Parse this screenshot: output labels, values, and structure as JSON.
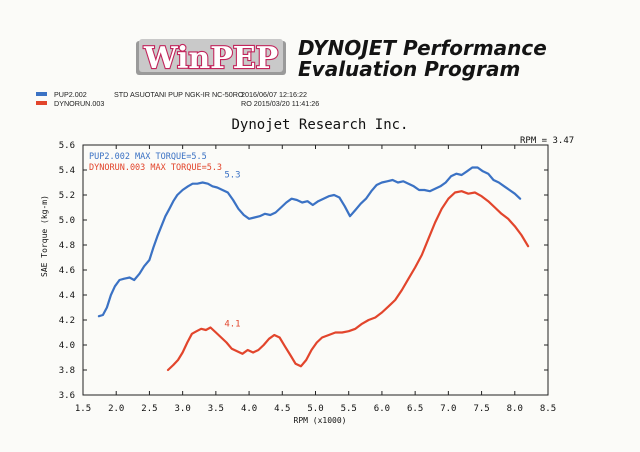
{
  "header": {
    "logo_text": "WinPEP",
    "title_line1": "DYNOJET Performance",
    "title_line2": "Evaluation Program"
  },
  "legend": [
    {
      "name": "PUP2.002",
      "description": "STD ASUOTANI PUP NGK-IR NC-50RO",
      "date": "2016/06/07 12:16:22",
      "color": "#3b72c4"
    },
    {
      "name": "DYNORUN.003",
      "description": "",
      "date": "RO  2015/03/20 11:41:26",
      "color": "#e2452c"
    }
  ],
  "company": "Dynojet  Research  Inc.",
  "rpm_note": "RPM = 3.47",
  "chart_data": {
    "type": "line",
    "title": "Dynojet Research Inc.",
    "xlabel": "RPM (x1000)",
    "ylabel": "SAE Torque (kg-m)",
    "xlim": [
      1.5,
      8.5
    ],
    "ylim": [
      3.6,
      5.6
    ],
    "xticks": [
      "1.5",
      "2.0",
      "2.5",
      "3.0",
      "3.5",
      "4.0",
      "4.5",
      "5.0",
      "5.5",
      "6.0",
      "6.5",
      "7.0",
      "7.5",
      "8.0",
      "8.5"
    ],
    "yticks": [
      "3.6",
      "3.8",
      "4.0",
      "4.2",
      "4.4",
      "4.6",
      "4.8",
      "5.0",
      "5.2",
      "5.4",
      "5.6"
    ],
    "inner_legend": [
      {
        "text": "PUP2.002  MAX TORQUE=5.5",
        "color": "#3b72c4"
      },
      {
        "text": "DYNORUN.003  MAX TORQUE=5.3",
        "color": "#e2452c"
      }
    ],
    "annotations": [
      {
        "text": "5.3",
        "x": 3.75,
        "y": 5.34,
        "color": "#3b72c4"
      },
      {
        "text": "4.1",
        "x": 3.75,
        "y": 4.15,
        "color": "#e2452c"
      }
    ],
    "series": [
      {
        "name": "PUP2.002",
        "color": "#3b72c4",
        "x": [
          1.74,
          1.8,
          1.86,
          1.92,
          1.98,
          2.05,
          2.12,
          2.2,
          2.27,
          2.35,
          2.42,
          2.5,
          2.56,
          2.62,
          2.68,
          2.74,
          2.8,
          2.86,
          2.92,
          3.0,
          3.08,
          3.15,
          3.22,
          3.3,
          3.38,
          3.45,
          3.52,
          3.6,
          3.68,
          3.76,
          3.84,
          3.92,
          4.0,
          4.08,
          4.16,
          4.24,
          4.32,
          4.4,
          4.48,
          4.56,
          4.64,
          4.72,
          4.8,
          4.88,
          4.96,
          5.04,
          5.12,
          5.2,
          5.28,
          5.36,
          5.44,
          5.52,
          5.6,
          5.68,
          5.76,
          5.84,
          5.92,
          6.0,
          6.08,
          6.16,
          6.24,
          6.32,
          6.4,
          6.48,
          6.56,
          6.64,
          6.72,
          6.8,
          6.88,
          6.96,
          7.04,
          7.12,
          7.2,
          7.28,
          7.36,
          7.44,
          7.52,
          7.6,
          7.68,
          7.76,
          7.84,
          7.92,
          8.0,
          8.08
        ],
        "y": [
          4.23,
          4.24,
          4.3,
          4.4,
          4.47,
          4.52,
          4.53,
          4.54,
          4.52,
          4.57,
          4.63,
          4.68,
          4.78,
          4.87,
          4.95,
          5.03,
          5.09,
          5.15,
          5.2,
          5.24,
          5.27,
          5.29,
          5.29,
          5.3,
          5.29,
          5.27,
          5.26,
          5.24,
          5.22,
          5.16,
          5.09,
          5.04,
          5.01,
          5.02,
          5.03,
          5.05,
          5.04,
          5.06,
          5.1,
          5.14,
          5.17,
          5.16,
          5.14,
          5.15,
          5.12,
          5.15,
          5.17,
          5.19,
          5.2,
          5.18,
          5.11,
          5.03,
          5.08,
          5.13,
          5.17,
          5.23,
          5.28,
          5.3,
          5.31,
          5.32,
          5.3,
          5.31,
          5.29,
          5.27,
          5.24,
          5.24,
          5.23,
          5.25,
          5.27,
          5.3,
          5.35,
          5.37,
          5.36,
          5.39,
          5.42,
          5.42,
          5.39,
          5.37,
          5.32,
          5.3,
          5.27,
          5.24,
          5.21,
          5.17
        ]
      },
      {
        "name": "DYNORUN.003",
        "color": "#e2452c",
        "x": [
          2.78,
          2.86,
          2.93,
          3.0,
          3.07,
          3.14,
          3.21,
          3.28,
          3.35,
          3.42,
          3.5,
          3.58,
          3.66,
          3.74,
          3.82,
          3.9,
          3.98,
          4.06,
          4.14,
          4.22,
          4.3,
          4.38,
          4.46,
          4.54,
          4.62,
          4.7,
          4.78,
          4.86,
          4.94,
          5.02,
          5.1,
          5.2,
          5.3,
          5.4,
          5.5,
          5.6,
          5.7,
          5.8,
          5.9,
          6.0,
          6.1,
          6.2,
          6.3,
          6.4,
          6.5,
          6.6,
          6.7,
          6.8,
          6.9,
          7.0,
          7.1,
          7.2,
          7.3,
          7.4,
          7.5,
          7.6,
          7.7,
          7.8,
          7.9,
          8.0,
          8.1,
          8.2
        ],
        "y": [
          3.8,
          3.84,
          3.88,
          3.94,
          4.02,
          4.09,
          4.11,
          4.13,
          4.12,
          4.14,
          4.1,
          4.06,
          4.02,
          3.97,
          3.95,
          3.93,
          3.96,
          3.94,
          3.96,
          4.0,
          4.05,
          4.08,
          4.06,
          3.99,
          3.92,
          3.85,
          3.83,
          3.88,
          3.96,
          4.02,
          4.06,
          4.08,
          4.1,
          4.1,
          4.11,
          4.13,
          4.17,
          4.2,
          4.22,
          4.26,
          4.31,
          4.36,
          4.44,
          4.53,
          4.62,
          4.72,
          4.85,
          4.98,
          5.09,
          5.17,
          5.22,
          5.23,
          5.21,
          5.22,
          5.19,
          5.15,
          5.1,
          5.05,
          5.01,
          4.95,
          4.88,
          4.79
        ]
      }
    ]
  }
}
